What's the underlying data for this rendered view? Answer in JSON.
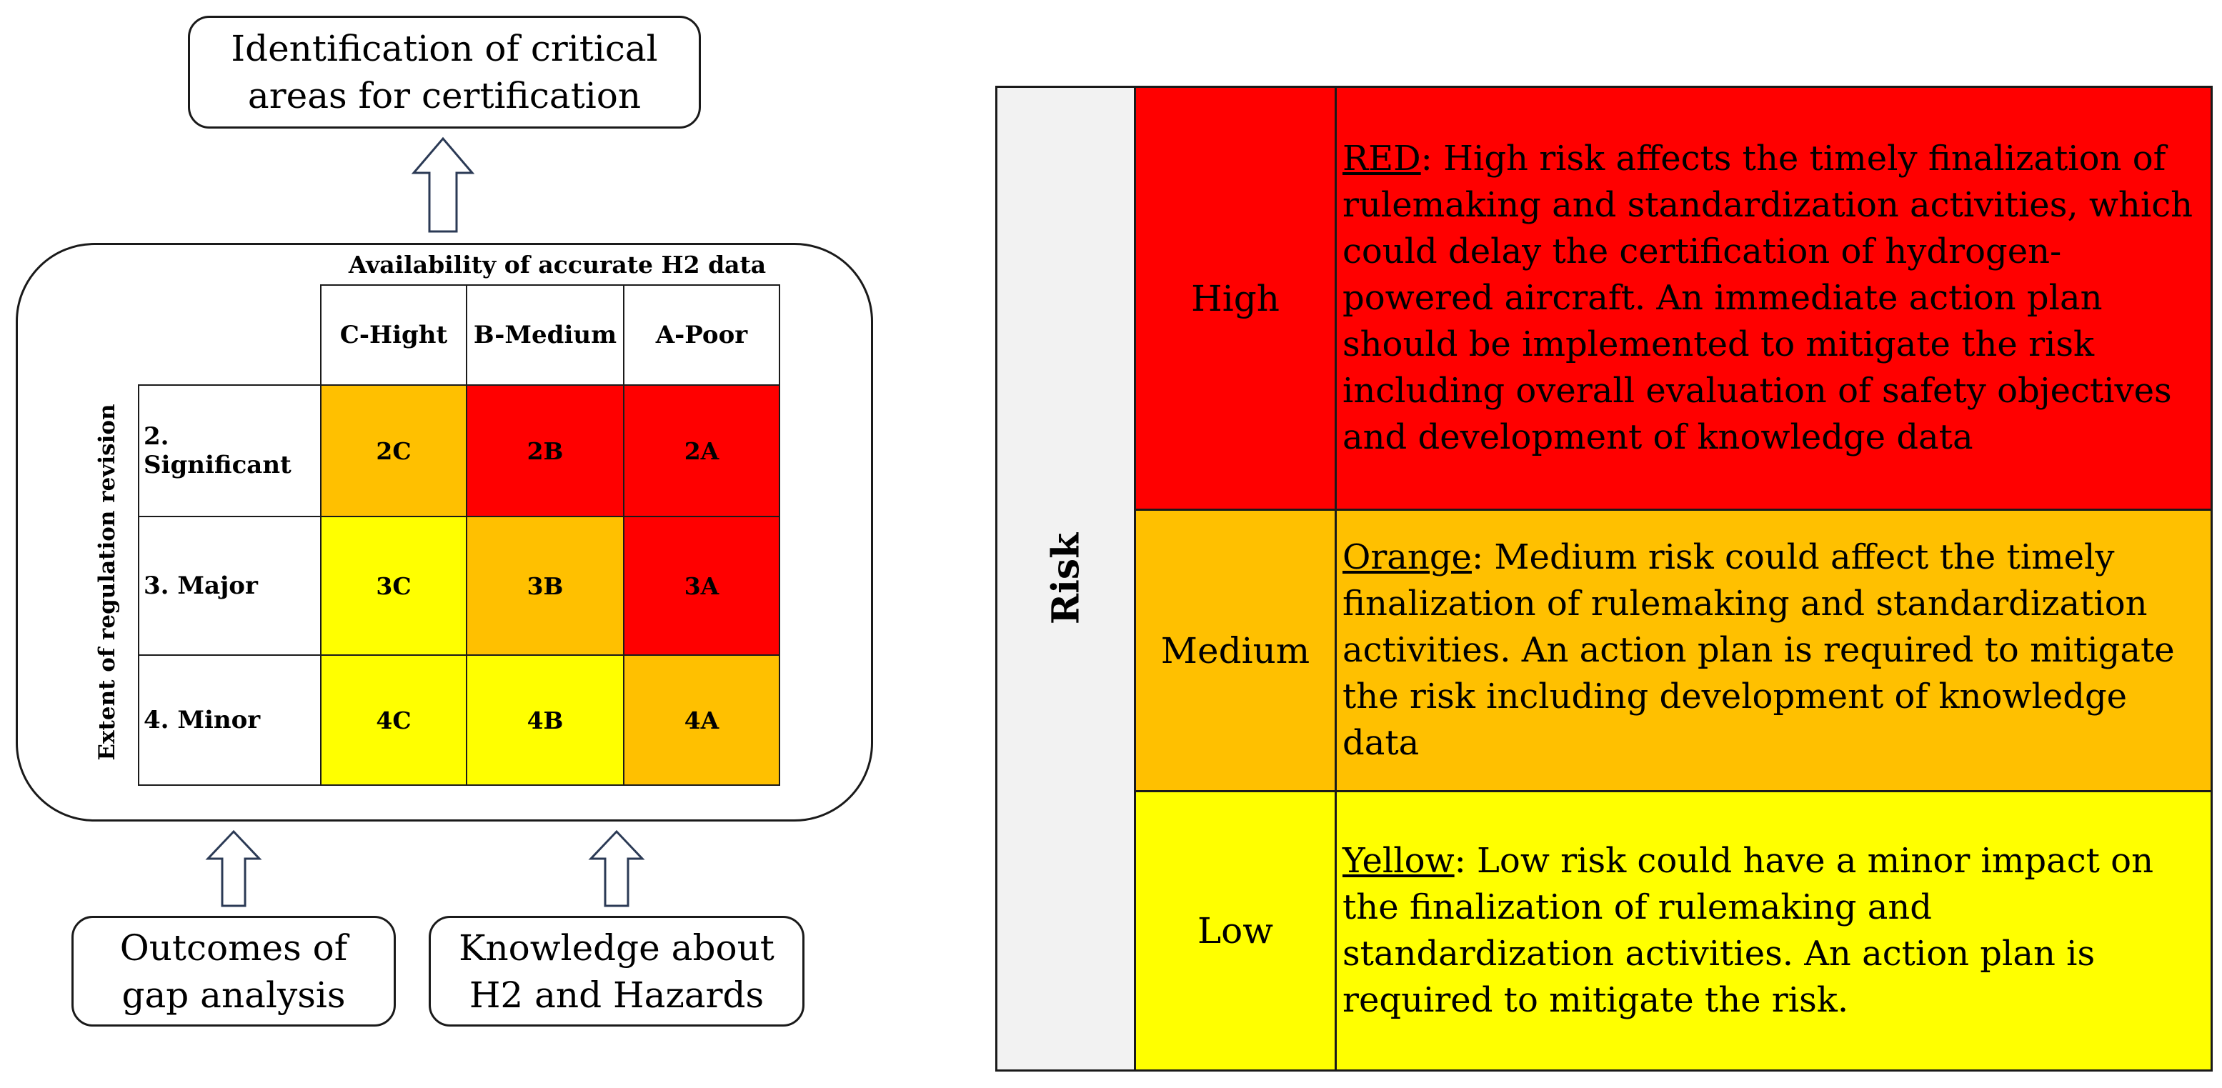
{
  "top_box": {
    "line1": "Identification of critical",
    "line2": "areas for certification"
  },
  "matrix": {
    "column_group_label": "Availability of accurate H2 data",
    "row_group_label": "Extent of regulation revision",
    "columns": [
      "C-Hight",
      "B-Medium",
      "A-Poor"
    ],
    "rows": [
      {
        "label": "2. Significant",
        "cells": [
          "2C",
          "2B",
          "2A"
        ],
        "colors": [
          "#FFC000",
          "#FF0000",
          "#FF0000"
        ]
      },
      {
        "label": "3. Major",
        "cells": [
          "3C",
          "3B",
          "3A"
        ],
        "colors": [
          "#FFFF00",
          "#FFC000",
          "#FF0000"
        ]
      },
      {
        "label": "4. Minor",
        "cells": [
          "4C",
          "4B",
          "4A"
        ],
        "colors": [
          "#FFFF00",
          "#FFFF00",
          "#FFC000"
        ]
      }
    ]
  },
  "bottom_left_box": {
    "line1": "Outcomes of",
    "line2": "gap analysis"
  },
  "bottom_right_box": {
    "line1": "Knowledge about",
    "line2": "H2 and Hazards"
  },
  "risk_table": {
    "header": "Risk",
    "header_color": "#F2F2F2",
    "rows": [
      {
        "level": "High",
        "color": "#FF0000",
        "prefix": "RED",
        "text": ": High risk affects the timely finalization of rulemaking and standardization activities, which could delay the certification of hydrogen-powered aircraft. An immediate action plan should be implemented to mitigate the risk including overall evaluation of safety objectives and development of knowledge data"
      },
      {
        "level": "Medium",
        "color": "#FFC000",
        "prefix": "Orange",
        "text": ":  Medium risk could affect the timely finalization of rulemaking and standardization activities. An action plan is required to mitigate the risk including development of knowledge data"
      },
      {
        "level": "Low",
        "color": "#FFFF00",
        "prefix": "Yellow",
        "text": ": Low risk could have a minor impact on the finalization of rulemaking and standardization activities. An action plan is required to mitigate the risk."
      }
    ]
  }
}
